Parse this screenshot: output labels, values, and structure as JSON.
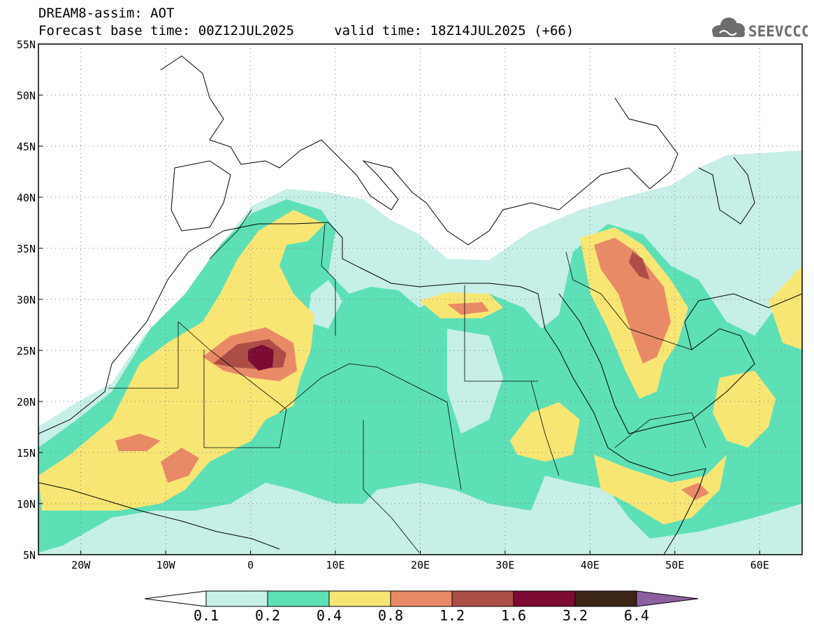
{
  "header": {
    "line1": "DREAM8-assim: AOT",
    "line2": "Forecast base time: 00Z12JUL2025     valid time: 18Z14JUL2025 (+66)"
  },
  "logo": {
    "text": "SEEVCCC",
    "icon": "cloud-icon"
  },
  "map": {
    "lon_range": [
      -25,
      65
    ],
    "lat_range": [
      5,
      55
    ],
    "lat_ticks": [
      "55N",
      "50N",
      "45N",
      "40N",
      "35N",
      "30N",
      "25N",
      "20N",
      "15N",
      "10N",
      "5N"
    ],
    "lon_ticks": [
      "20W",
      "10W",
      "0",
      "10E",
      "20E",
      "30E",
      "40E",
      "50E",
      "60E"
    ],
    "grid": "dotted"
  },
  "colorbar": {
    "levels": [
      "0.1",
      "0.2",
      "0.4",
      "0.8",
      "1.2",
      "1.6",
      "3.2",
      "6.4"
    ],
    "colors": [
      "#ffffff",
      "#c6efe7",
      "#5ee0b7",
      "#f8e674",
      "#e98a67",
      "#ad4e46",
      "#7c0a32",
      "#3b2517",
      "#8c5fa0"
    ]
  }
}
